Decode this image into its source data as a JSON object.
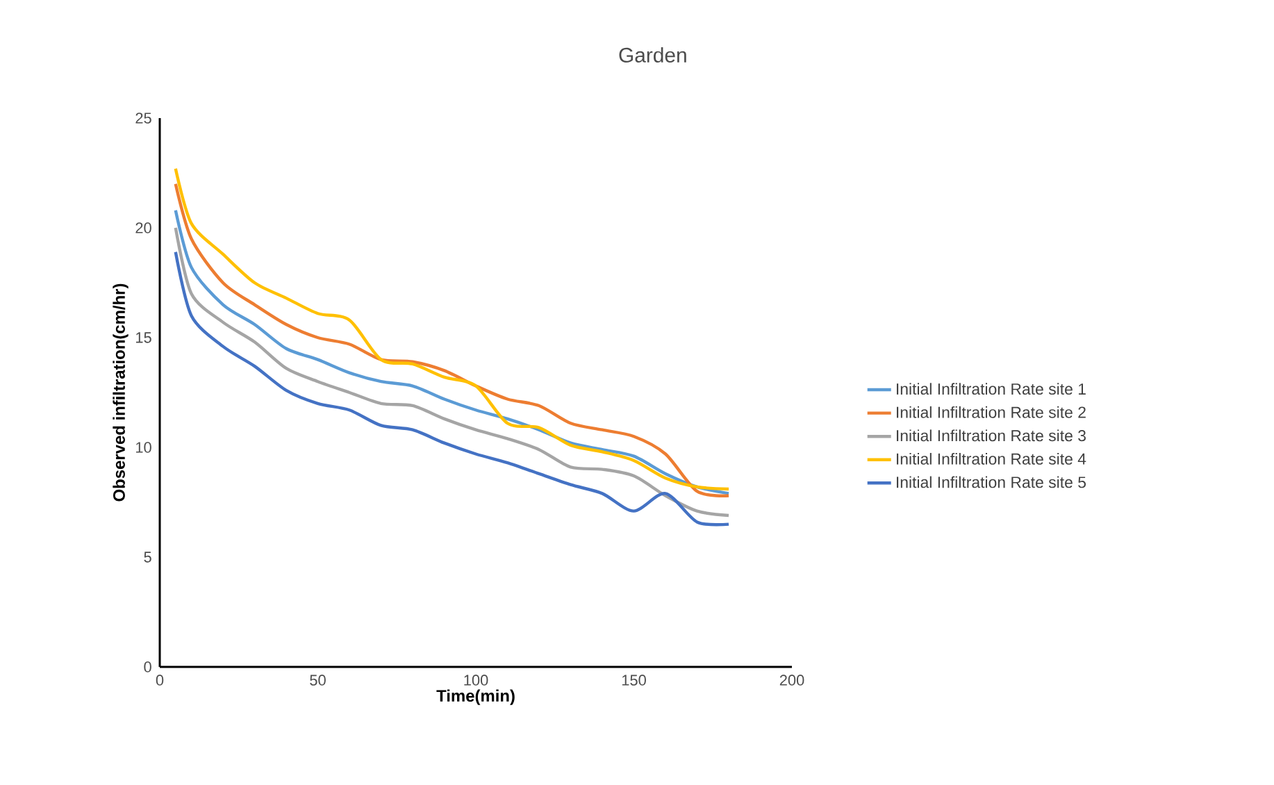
{
  "chart_data": {
    "type": "line",
    "title": "Garden",
    "xlabel": "Time(min)",
    "ylabel": "Observed infiltration(cm/hr)",
    "x": [
      5,
      10,
      20,
      30,
      40,
      50,
      60,
      70,
      80,
      90,
      100,
      110,
      120,
      130,
      140,
      150,
      160,
      170,
      180
    ],
    "series": [
      {
        "name": "Initial Infiltration Rate site 1",
        "color": "#5b9bd5",
        "values": [
          20.8,
          18.2,
          16.5,
          15.6,
          14.5,
          14.0,
          13.4,
          13.0,
          12.8,
          12.2,
          11.7,
          11.3,
          10.8,
          10.2,
          9.9,
          9.6,
          8.8,
          8.2,
          7.9
        ]
      },
      {
        "name": "Initial Infiltration Rate site 2",
        "color": "#ed7d31",
        "values": [
          22.0,
          19.5,
          17.5,
          16.5,
          15.6,
          15.0,
          14.7,
          14.0,
          13.9,
          13.5,
          12.8,
          12.2,
          11.9,
          11.1,
          10.8,
          10.5,
          9.7,
          8.0,
          7.8
        ]
      },
      {
        "name": "Initial Infiltration Rate site 3",
        "color": "#a5a5a5",
        "values": [
          20.0,
          17.0,
          15.7,
          14.8,
          13.6,
          13.0,
          12.5,
          12.0,
          11.9,
          11.3,
          10.8,
          10.4,
          9.9,
          9.1,
          9.0,
          8.7,
          7.8,
          7.1,
          6.9
        ]
      },
      {
        "name": "Initial Infiltration Rate site 4",
        "color": "#ffc000",
        "values": [
          22.7,
          20.2,
          18.8,
          17.5,
          16.8,
          16.1,
          15.8,
          14.0,
          13.8,
          13.2,
          12.8,
          11.1,
          10.9,
          10.1,
          9.8,
          9.4,
          8.6,
          8.2,
          8.1
        ]
      },
      {
        "name": "Initial Infiltration Rate site 5",
        "color": "#4472c4",
        "values": [
          18.9,
          16.0,
          14.6,
          13.7,
          12.6,
          12.0,
          11.7,
          11.0,
          10.8,
          10.2,
          9.7,
          9.3,
          8.8,
          8.3,
          7.9,
          7.1,
          7.9,
          6.6,
          6.5
        ]
      }
    ],
    "xlim": [
      0,
      200
    ],
    "xticks": [
      0,
      50,
      100,
      150,
      200
    ],
    "ylim": [
      0,
      25
    ],
    "yticks": [
      0,
      5,
      10,
      15,
      20,
      25
    ],
    "grid": false,
    "legend": "right",
    "marker": "none",
    "line_style": "solid"
  }
}
